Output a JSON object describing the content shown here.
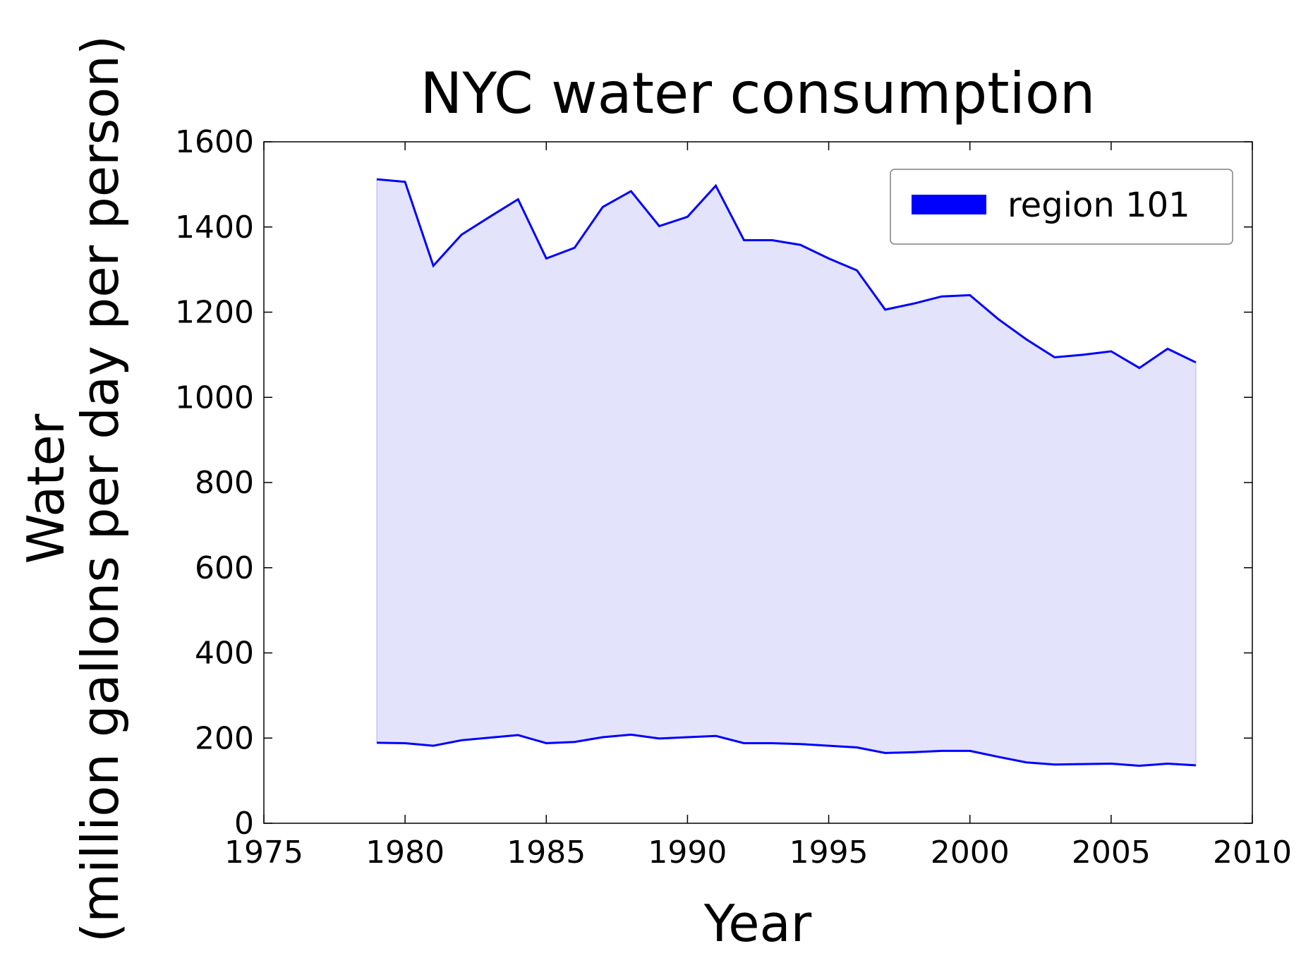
{
  "chart_data": {
    "type": "area",
    "title": "NYC water consumption",
    "xlabel": "Year",
    "ylabel": [
      "Water",
      "(million gallons per day per person)"
    ],
    "xlim": [
      1975,
      2010
    ],
    "ylim": [
      0,
      1600
    ],
    "xticks": [
      "1975",
      "1980",
      "1985",
      "1990",
      "1995",
      "2000",
      "2005",
      "2010"
    ],
    "yticks": [
      "0",
      "200",
      "400",
      "600",
      "800",
      "1000",
      "1200",
      "1400",
      "1600"
    ],
    "grid": false,
    "legend": {
      "placement": "top-right",
      "label": "region 101"
    },
    "colors": {
      "line": "#0000ff",
      "fill": "#e3e3fb",
      "fill_edge": "#c8c8ec"
    },
    "x": [
      1979,
      1980,
      1981,
      1982,
      1983,
      1984,
      1985,
      1986,
      1987,
      1988,
      1989,
      1990,
      1991,
      1992,
      1993,
      1994,
      1995,
      1996,
      1997,
      1998,
      1999,
      2000,
      2001,
      2002,
      2003,
      2004,
      2005,
      2006,
      2007,
      2008
    ],
    "series": [
      {
        "role": "upper",
        "values": [
          1512,
          1506,
          1309,
          1382,
          1424,
          1465,
          1326,
          1351,
          1447,
          1484,
          1402,
          1424,
          1497,
          1369,
          1369,
          1358,
          1326,
          1298,
          1206,
          1220,
          1237,
          1240,
          1184,
          1136,
          1094,
          1100,
          1108,
          1069,
          1114,
          1082
        ]
      },
      {
        "role": "lower",
        "values": [
          189,
          188,
          182,
          195,
          201,
          207,
          188,
          191,
          202,
          208,
          199,
          202,
          205,
          188,
          188,
          186,
          182,
          178,
          165,
          167,
          170,
          170,
          156,
          143,
          138,
          139,
          140,
          135,
          140,
          136
        ]
      }
    ]
  }
}
